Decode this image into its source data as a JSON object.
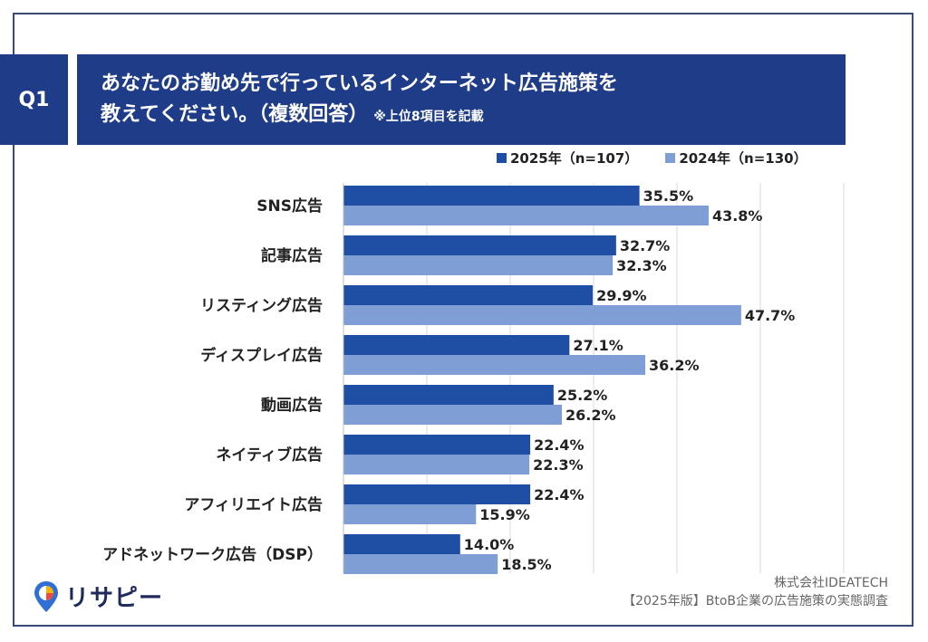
{
  "header": {
    "q_label": "Q1",
    "title_line1": "あなたのお勤め先で行っているインターネット広告施策を",
    "title_line2": "教えてください。（複数回答）",
    "title_note": "※上位8項目を記載"
  },
  "colors": {
    "series_2025": "#1f4ea5",
    "series_2024": "#7f9ed6",
    "title_bg": "#1f3c88"
  },
  "chart_data": {
    "type": "bar",
    "orientation": "horizontal",
    "categories": [
      "SNS広告",
      "記事広告",
      "リスティング広告",
      "ディスプレイ広告",
      "動画広告",
      "ネイティブ広告",
      "アフィリエイト広告",
      "アドネットワーク広告（DSP）"
    ],
    "series": [
      {
        "name": "2025年（n=107）",
        "values": [
          35.5,
          32.7,
          29.9,
          27.1,
          25.2,
          22.4,
          22.4,
          14.0
        ],
        "labels": [
          "35.5%",
          "32.7%",
          "29.9%",
          "27.1%",
          "25.2%",
          "22.4%",
          "22.4%",
          "14.0%"
        ]
      },
      {
        "name": "2024年（n=130）",
        "values": [
          43.8,
          32.3,
          47.7,
          36.2,
          26.2,
          22.3,
          15.9,
          18.5
        ],
        "labels": [
          "43.8%",
          "32.3%",
          "47.7%",
          "36.2%",
          "26.2%",
          "22.3%",
          "15.9%",
          "18.5%"
        ]
      }
    ],
    "xlim": [
      0,
      60
    ],
    "grid": true,
    "legend_position": "top-right"
  },
  "logo": {
    "text": "リサピー"
  },
  "footer": {
    "company": "株式会社IDEATECH",
    "survey": "【2025年版】BtoB企業の広告施策の実態調査"
  }
}
